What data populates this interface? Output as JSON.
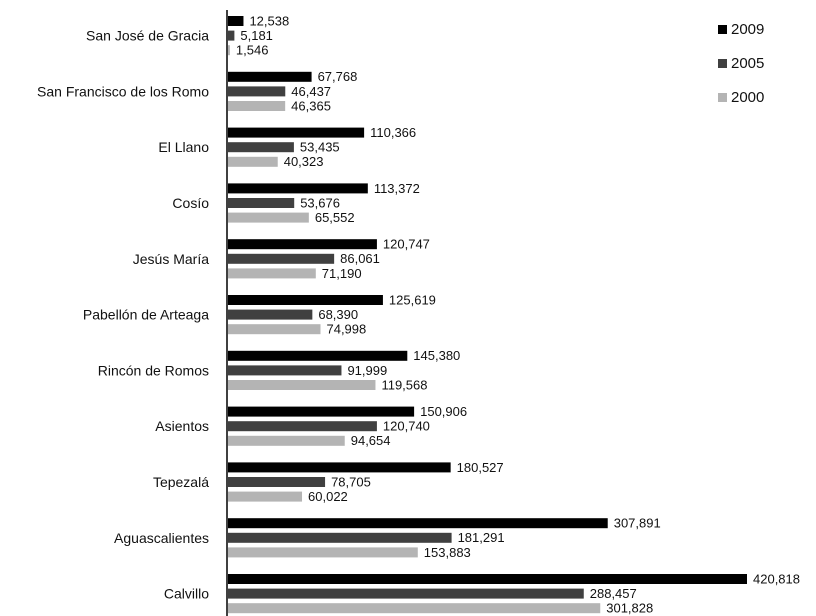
{
  "chart_data": {
    "type": "bar",
    "orientation": "horizontal",
    "title": "",
    "xlabel": "",
    "ylabel": "",
    "grid": false,
    "legend_position": "top-right",
    "xlim": [
      0,
      420818
    ],
    "categories": [
      "San José de Gracia",
      "San Francisco de los Romo",
      "El Llano",
      "Cosío",
      "Jesús María",
      "Pabellón de Arteaga",
      "Rincón de Romos",
      "Asientos",
      "Tepezalá",
      "Aguascalientes",
      "Calvillo"
    ],
    "value_labels": [
      [
        "12,538",
        "5,181",
        "1,546"
      ],
      [
        "67,768",
        "46,437",
        "46,365"
      ],
      [
        "110,366",
        "53,435",
        "40,323"
      ],
      [
        "113,372",
        "53,676",
        "65,552"
      ],
      [
        "120,747",
        "86,061",
        "71,190"
      ],
      [
        "125,619",
        "68,390",
        "74,998"
      ],
      [
        "145,380",
        "91,999",
        "119,568"
      ],
      [
        "150,906",
        "120,740",
        "94,654"
      ],
      [
        "180,527",
        "78,705",
        "60,022"
      ],
      [
        "307,891",
        "181,291",
        "153,883"
      ],
      [
        "420,818",
        "288,457",
        "301,828"
      ]
    ],
    "series": [
      {
        "name": "2009",
        "color": "#000000",
        "values": [
          12538,
          67768,
          110366,
          113372,
          120747,
          125619,
          145380,
          150906,
          180527,
          307891,
          420818
        ]
      },
      {
        "name": "2005",
        "color": "#404040",
        "values": [
          5181,
          46437,
          53435,
          53676,
          86061,
          68390,
          91999,
          120740,
          78705,
          181291,
          288457
        ]
      },
      {
        "name": "2000",
        "color": "#b4b4b4",
        "values": [
          1546,
          46365,
          40323,
          65552,
          71190,
          74998,
          119568,
          94654,
          60022,
          153883,
          301828
        ]
      }
    ]
  }
}
